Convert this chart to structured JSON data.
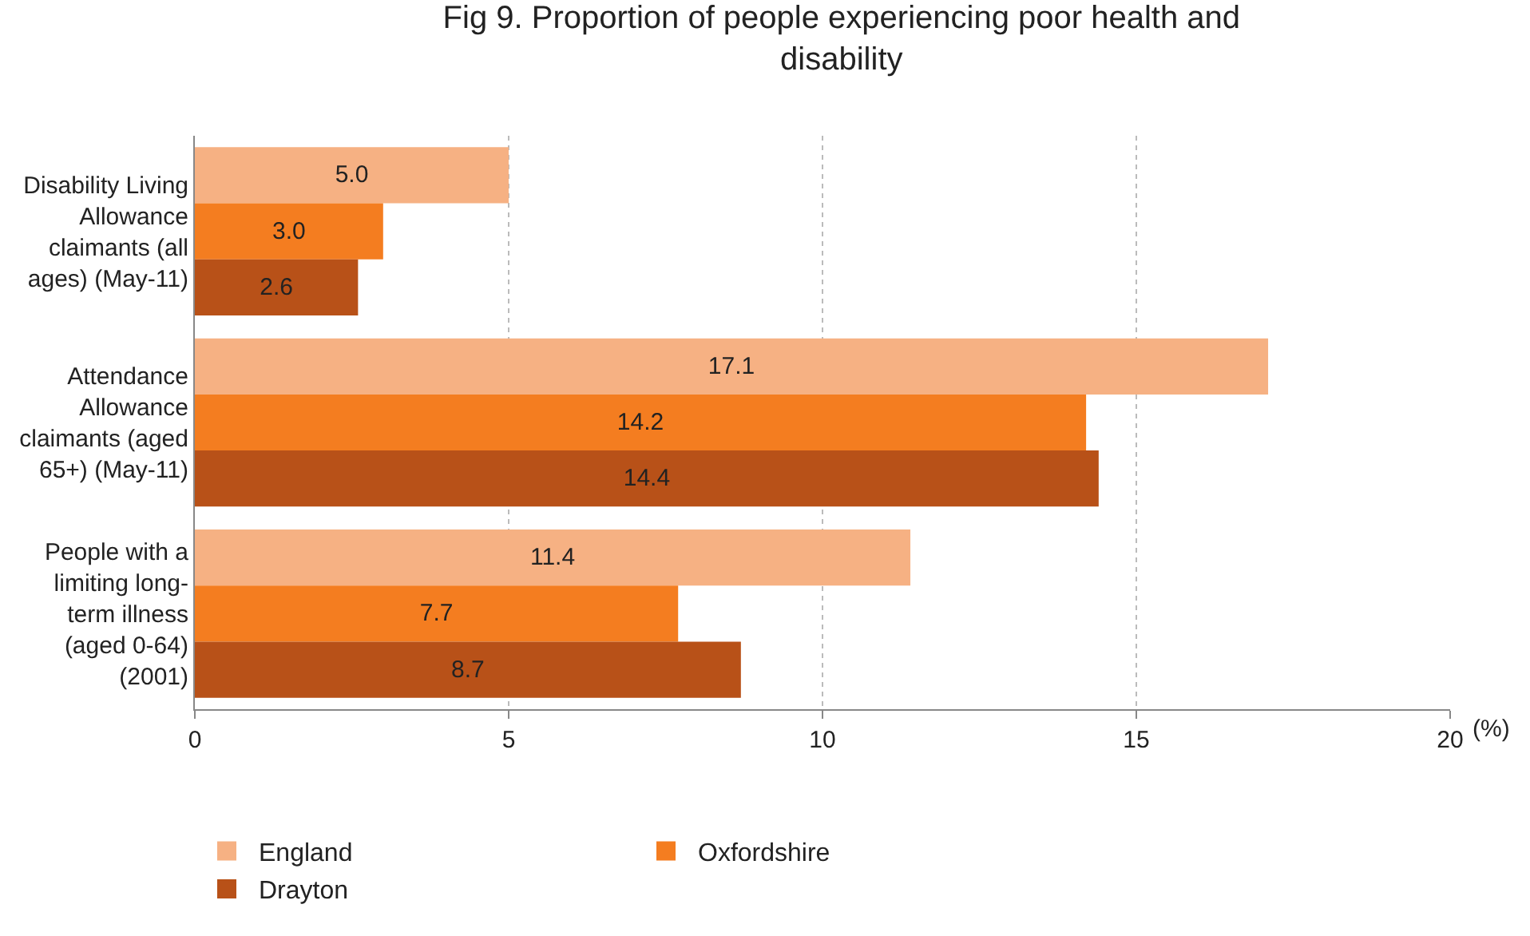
{
  "chart_data": {
    "type": "bar",
    "orientation": "horizontal",
    "title": "Fig 9. Proportion of people experiencing poor health and disability",
    "xlabel": "(%)",
    "categories": [
      "Disability Living Allowance claimants (all ages) (May-11)",
      "Attendance Allowance claimants (aged 65+) (May-11)",
      "People with a limiting long-term illness (aged 0-64) (2001)"
    ],
    "series": [
      {
        "name": "England",
        "color": "#f6b183",
        "values": [
          5.0,
          17.1,
          11.4
        ],
        "value_labels": [
          "5.0",
          "17.1",
          "11.4"
        ]
      },
      {
        "name": "Oxfordshire",
        "color": "#f47d20",
        "values": [
          3.0,
          14.2,
          7.7
        ],
        "value_labels": [
          "3.0",
          "14.2",
          "7.7"
        ]
      },
      {
        "name": "Drayton",
        "color": "#b85118",
        "values": [
          2.6,
          14.4,
          8.7
        ],
        "value_labels": [
          "2.6",
          "14.4",
          "8.7"
        ]
      }
    ],
    "xlim": [
      0,
      20
    ],
    "xticks": [
      0,
      5,
      10,
      15,
      20
    ],
    "grid": "x",
    "legend": "bottom"
  }
}
